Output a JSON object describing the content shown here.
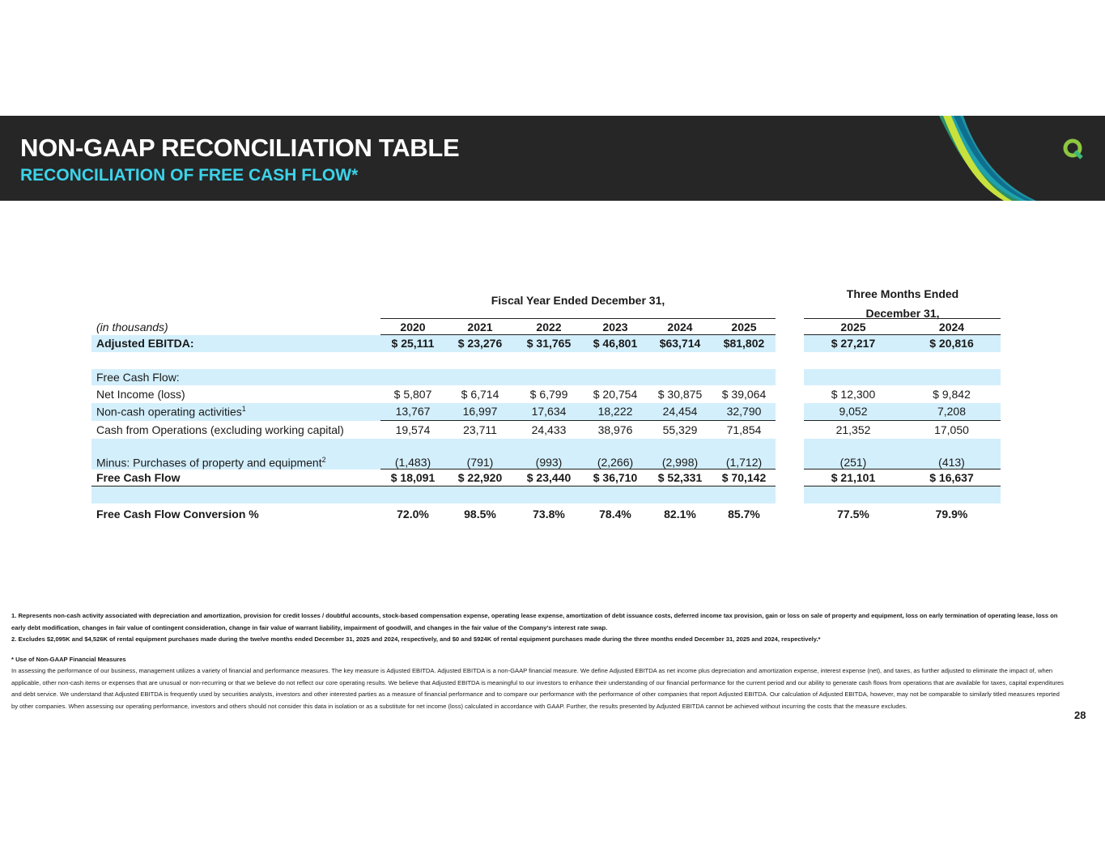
{
  "header": {
    "title": "NON-GAAP RECONCILIATION TABLE",
    "subtitle": "RECONCILIATION OF FREE CASH FLOW*"
  },
  "table": {
    "group_headers": [
      "Fiscal Year Ended December 31,",
      "Three Months Ended December 31,"
    ],
    "unit_label": "(in thousands)",
    "columns": [
      "2020",
      "2021",
      "2022",
      "2023",
      "2024",
      "2025",
      "2025",
      "2024"
    ],
    "rows": [
      {
        "label": "Adjusted EBITDA:",
        "cells": [
          "$ 25,111",
          "$ 23,276",
          "$ 31,765",
          "$ 46,801",
          "$63,714",
          "$81,802",
          "$ 27,217",
          "$ 20,816"
        ]
      },
      {
        "label": "Free Cash Flow:"
      },
      {
        "label": "Net Income (loss)",
        "cells": [
          "$ 5,807",
          "$ 6,714",
          "$ 6,799",
          "$ 20,754",
          "$ 30,875",
          "$ 39,064",
          "$ 12,300",
          "$ 9,842"
        ]
      },
      {
        "label": "Non-cash operating activities",
        "note": "1",
        "cells": [
          "13,767",
          "16,997",
          "17,634",
          "18,222",
          "24,454",
          "32,790",
          "9,052",
          "7,208"
        ]
      },
      {
        "label": "Cash from Operations (excluding working capital)",
        "cells": [
          "19,574",
          "23,711",
          "24,433",
          "38,976",
          "55,329",
          "71,854",
          "21,352",
          "17,050"
        ]
      },
      {
        "label": "Minus: Purchases of property and equipment",
        "note": "2",
        "cells": [
          "(1,483)",
          "(791)",
          "(993)",
          "(2,266)",
          "(2,998)",
          "(1,712)",
          "(251)",
          "(413)"
        ]
      },
      {
        "label": "Free Cash Flow",
        "cells": [
          "$ 18,091",
          "$ 22,920",
          "$ 23,440",
          "$ 36,710",
          "$ 52,331",
          "$ 70,142",
          "$ 21,101",
          "$ 16,637"
        ]
      },
      {
        "label": "Free Cash Flow Conversion %",
        "cells": [
          "72.0%",
          "98.5%",
          "73.8%",
          "78.4%",
          "82.1%",
          "85.7%",
          "77.5%",
          "79.9%"
        ]
      }
    ]
  },
  "footnotes": [
    "1. Represents non-cash activity associated with depreciation and amortization, provision for credit losses / doubtful accounts, stock-based compensation expense, operating lease expense, amortization of debt issuance costs, deferred income tax provision, gain or loss on sale of property and equipment, loss on early termination of operating lease, loss on early debt modification, changes in fair value of contingent consideration, change in fair value of warrant liability, impairment of goodwill, and changes in the fair value of the Company's interest rate swap.",
    "2. Excludes $2,095K and $4,526K of rental equipment purchases made during the twelve months ended December 31, 2025 and 2024, respectively, and $0 and $924K of rental equipment purchases made during the three months ended December 31, 2025 and 2024, respectively.*"
  ],
  "disclosure": {
    "heading": "* Use of Non-GAAP Financial Measures",
    "text": "In assessing the performance of our business, management utilizes a variety of financial and performance measures. The key measure is Adjusted EBITDA. Adjusted EBITDA is a non-GAAP financial measure. We define Adjusted EBITDA as net income plus depreciation and amortization expense, interest expense (net), and taxes, as further adjusted to eliminate the impact of, when applicable, other non-cash items or expenses that are unusual or non-recurring or that we believe do not reflect our core operating results. We believe that Adjusted EBITDA is meaningful to our investors to enhance their understanding of our financial performance for the current period and our ability to generate cash flows from operations that are available for taxes, capital expenditures and debt service. We understand that Adjusted EBITDA is frequently used by securities analysts, investors and other interested parties as a measure of financial performance and to compare our performance with the performance of other companies that report Adjusted EBITDA. Our calculation of Adjusted EBITDA, however, may not be comparable to similarly titled measures reported by other companies. When assessing our operating performance, investors and others should not consider this data in isolation or as a substitute for net income (loss) calculated in accordance with GAAP. Further, the results presented by Adjusted EBITDA cannot be achieved without incurring the costs that the measure excludes."
  },
  "page_number": "28"
}
